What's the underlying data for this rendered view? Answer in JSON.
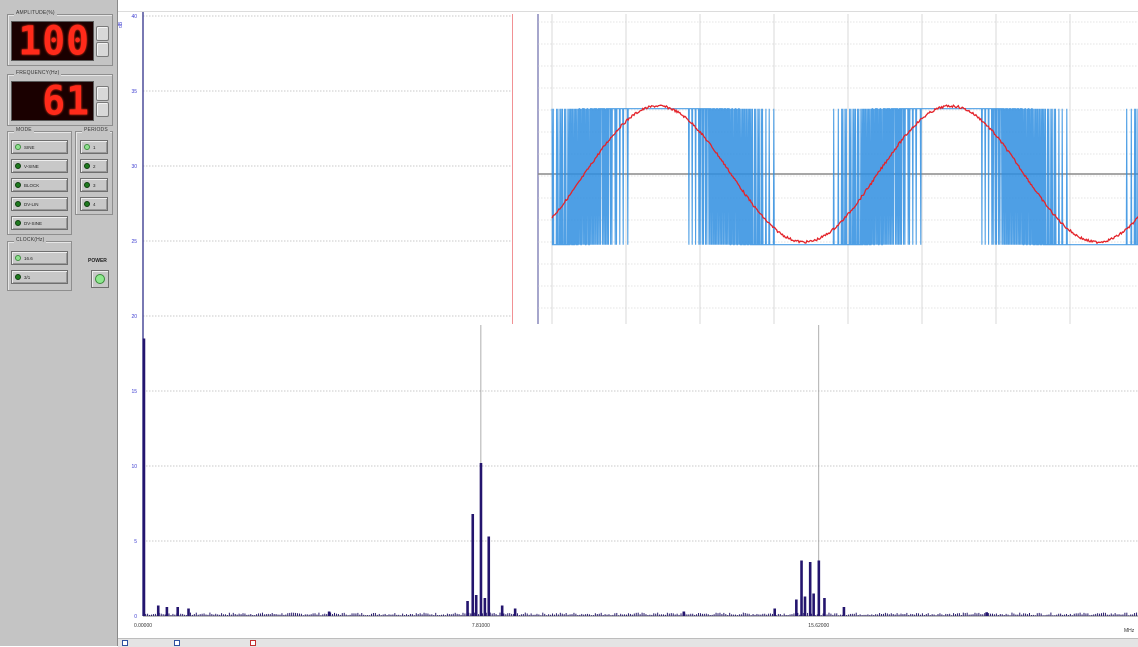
{
  "panel": {
    "amplitude": {
      "title": "AMPLITUDE(%)",
      "value": "100",
      "ghost": ""
    },
    "frequency": {
      "title": "FREQUENCY(Hz)",
      "value": "61",
      "ghost": "8"
    },
    "mode": {
      "title": "MODE",
      "items": [
        "SINE",
        "V-SINE",
        "BLOCK",
        "DV-LIN",
        "DV-SINE"
      ],
      "selected": 0
    },
    "periods": {
      "title": "PERIODS",
      "items": [
        "1",
        "2",
        "3",
        "4"
      ],
      "selected": 0
    },
    "clock": {
      "title": "CLOCK(Hz)",
      "items": [
        "16.6",
        "3/1"
      ],
      "selected": 0
    },
    "power_label": "POWER"
  },
  "spectrum": {
    "y_unit_label": "dB",
    "x_unit_label": "MHz"
  },
  "chart_data": [
    {
      "type": "bar",
      "ylim": [
        0,
        40
      ],
      "y_ticks": [
        "0",
        "5",
        "10",
        "15",
        "20",
        "25",
        "30",
        "35",
        "40"
      ],
      "xlim": [
        0,
        23.0
      ],
      "x_ticks": [
        {
          "value": 0.0,
          "label": "0.00000"
        },
        {
          "value": 7.81,
          "label": "7.81000"
        },
        {
          "value": 15.62,
          "label": "15.62000"
        }
      ],
      "grid": true,
      "peaks": [
        {
          "x": 0.02,
          "y": 18.5
        },
        {
          "x": 7.62,
          "y": 6.8
        },
        {
          "x": 7.81,
          "y": 10.2
        },
        {
          "x": 7.99,
          "y": 5.3
        },
        {
          "x": 7.7,
          "y": 1.4
        },
        {
          "x": 7.9,
          "y": 1.2
        },
        {
          "x": 7.5,
          "y": 1.0
        },
        {
          "x": 15.22,
          "y": 3.7
        },
        {
          "x": 15.42,
          "y": 3.6
        },
        {
          "x": 15.62,
          "y": 3.7
        },
        {
          "x": 15.3,
          "y": 1.3
        },
        {
          "x": 15.5,
          "y": 1.5
        },
        {
          "x": 15.1,
          "y": 1.1
        },
        {
          "x": 15.75,
          "y": 1.2
        },
        {
          "x": 0.35,
          "y": 0.7
        },
        {
          "x": 0.55,
          "y": 0.6
        },
        {
          "x": 0.8,
          "y": 0.6
        },
        {
          "x": 1.05,
          "y": 0.5
        },
        {
          "x": 8.3,
          "y": 0.7
        },
        {
          "x": 8.6,
          "y": 0.5
        },
        {
          "x": 16.2,
          "y": 0.6
        },
        {
          "x": 14.6,
          "y": 0.5
        },
        {
          "x": 12.5,
          "y": 0.3
        },
        {
          "x": 4.3,
          "y": 0.3
        },
        {
          "x": 19.5,
          "y": 0.25
        }
      ]
    },
    {
      "type": "line",
      "series": [
        {
          "color": "#e3232a",
          "kind": "sine",
          "cycles": 2,
          "phase_deg": -40,
          "amplitude": 1.0
        },
        {
          "color": "#2f8ee0",
          "kind": "pwm-block",
          "high": 1.0,
          "low": -1.0
        }
      ]
    }
  ],
  "status": {
    "legend": [
      "",
      "",
      ""
    ]
  }
}
